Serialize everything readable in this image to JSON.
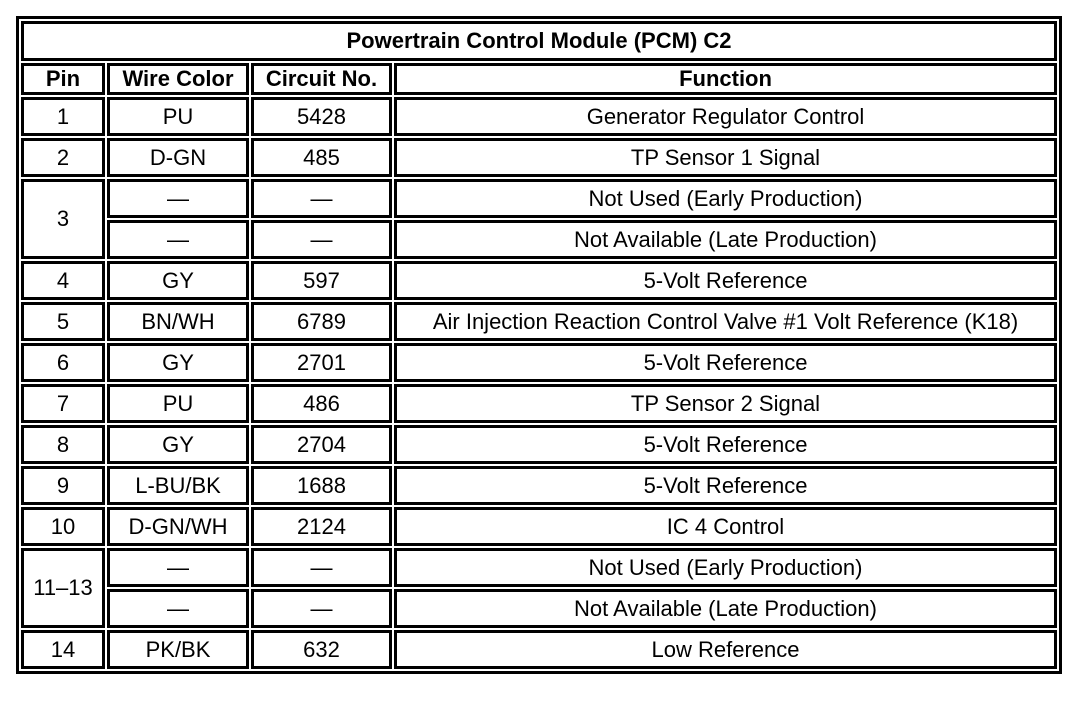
{
  "table": {
    "title": "Powertrain Control Module (PCM) C2",
    "columns": [
      "Pin",
      "Wire Color",
      "Circuit No.",
      "Function"
    ],
    "rows": [
      {
        "pin": "1",
        "pin_rowspan": 1,
        "wire_color": "PU",
        "circuit_no": "5428",
        "function": "Generator Regulator Control"
      },
      {
        "pin": "2",
        "pin_rowspan": 1,
        "wire_color": "D-GN",
        "circuit_no": "485",
        "function": "TP Sensor 1 Signal"
      },
      {
        "pin": "3",
        "pin_rowspan": 2,
        "wire_color": "—",
        "circuit_no": "—",
        "function": "Not Used (Early Production)"
      },
      {
        "pin": null,
        "wire_color": "—",
        "circuit_no": "—",
        "function": "Not Available (Late Production)"
      },
      {
        "pin": "4",
        "pin_rowspan": 1,
        "wire_color": "GY",
        "circuit_no": "597",
        "function": "5-Volt Reference"
      },
      {
        "pin": "5",
        "pin_rowspan": 1,
        "wire_color": "BN/WH",
        "circuit_no": "6789",
        "function": "Air Injection Reaction Control Valve #1 Volt Reference (K18)"
      },
      {
        "pin": "6",
        "pin_rowspan": 1,
        "wire_color": "GY",
        "circuit_no": "2701",
        "function": "5-Volt Reference"
      },
      {
        "pin": "7",
        "pin_rowspan": 1,
        "wire_color": "PU",
        "circuit_no": "486",
        "function": "TP Sensor 2 Signal"
      },
      {
        "pin": "8",
        "pin_rowspan": 1,
        "wire_color": "GY",
        "circuit_no": "2704",
        "function": "5-Volt Reference"
      },
      {
        "pin": "9",
        "pin_rowspan": 1,
        "wire_color": "L-BU/BK",
        "circuit_no": "1688",
        "function": "5-Volt Reference"
      },
      {
        "pin": "10",
        "pin_rowspan": 1,
        "wire_color": "D-GN/WH",
        "circuit_no": "2124",
        "function": "IC 4 Control"
      },
      {
        "pin": "11–13",
        "pin_rowspan": 2,
        "wire_color": "—",
        "circuit_no": "—",
        "function": "Not Used (Early Production)"
      },
      {
        "pin": null,
        "wire_color": "—",
        "circuit_no": "—",
        "function": "Not Available (Late Production)"
      },
      {
        "pin": "14",
        "pin_rowspan": 1,
        "wire_color": "PK/BK",
        "circuit_no": "632",
        "function": "Low Reference"
      }
    ]
  },
  "colors": {
    "border": "#000000",
    "text": "#000000",
    "background": "#ffffff"
  }
}
